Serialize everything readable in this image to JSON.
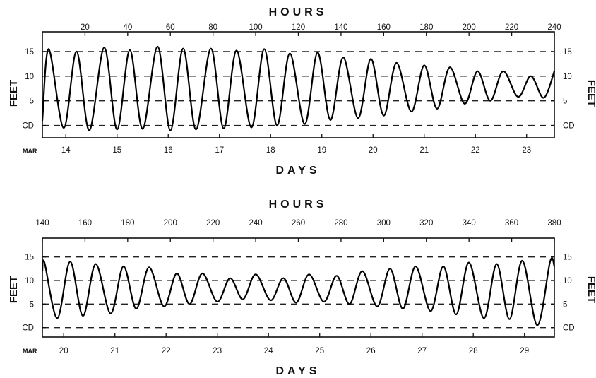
{
  "chart_data": [
    {
      "type": "line",
      "title": "",
      "top_axis_label": "HOURS",
      "xlabel": "DAYS",
      "ylabel_left": "FEET",
      "ylabel_right": "FEET",
      "x_hours_range": [
        0,
        240
      ],
      "hour_ticks": [
        20,
        40,
        60,
        80,
        100,
        120,
        140,
        160,
        180,
        200,
        220,
        240
      ],
      "day_ticks": [
        {
          "label": "14",
          "hour": 11
        },
        {
          "label": "15",
          "hour": 35
        },
        {
          "label": "16",
          "hour": 59
        },
        {
          "label": "17",
          "hour": 83
        },
        {
          "label": "18",
          "hour": 107
        },
        {
          "label": "19",
          "hour": 131
        },
        {
          "label": "20",
          "hour": 155
        },
        {
          "label": "21",
          "hour": 179
        },
        {
          "label": "22",
          "hour": 203
        },
        {
          "label": "23",
          "hour": 227
        }
      ],
      "month_label": "MAR",
      "ylim": [
        -2.5,
        19
      ],
      "left_y_ticks": [
        {
          "label": "15",
          "value": 15
        },
        {
          "label": "10",
          "value": 10
        },
        {
          "label": "5",
          "value": 5
        },
        {
          "label": "CD",
          "value": 0
        }
      ],
      "right_y_ticks": [
        {
          "label": "15",
          "value": 15
        },
        {
          "label": "10",
          "value": 10
        },
        {
          "label": "5",
          "value": 5
        },
        {
          "label": "CD",
          "value": 0
        }
      ],
      "reference_lines": [
        0,
        5,
        10,
        15
      ],
      "series": [
        {
          "x": [
            0,
            3,
            10,
            16,
            22,
            29,
            35,
            41,
            47,
            54,
            60,
            66,
            72,
            79,
            85,
            91,
            98,
            104,
            110,
            116,
            123,
            129,
            135,
            141,
            148,
            154,
            160,
            166,
            173,
            179,
            185,
            191,
            198,
            204,
            210,
            216,
            223,
            229,
            235,
            240
          ],
          "y": [
            1,
            15.5,
            -0.5,
            15,
            -1,
            15.8,
            -0.8,
            15.3,
            -0.7,
            16,
            -1,
            15.6,
            -0.8,
            15.6,
            -0.6,
            15.2,
            -0.4,
            15.5,
            0,
            14.6,
            0.3,
            14.8,
            1.1,
            13.8,
            1.5,
            13.5,
            2,
            12.7,
            2.8,
            12.2,
            3.4,
            11.8,
            4.4,
            11,
            5,
            11,
            5.8,
            10,
            5.6,
            11
          ]
        }
      ]
    },
    {
      "type": "line",
      "title": "",
      "top_axis_label": "HOURS",
      "xlabel": "DAYS",
      "ylabel_left": "FEET",
      "ylabel_right": "FEET",
      "x_hours_range": [
        140,
        380
      ],
      "hour_ticks": [
        140,
        160,
        180,
        200,
        220,
        240,
        260,
        280,
        300,
        320,
        340,
        360,
        380
      ],
      "day_ticks": [
        {
          "label": "20",
          "hour": 150
        },
        {
          "label": "21",
          "hour": 174
        },
        {
          "label": "22",
          "hour": 198
        },
        {
          "label": "23",
          "hour": 222
        },
        {
          "label": "24",
          "hour": 246
        },
        {
          "label": "25",
          "hour": 270
        },
        {
          "label": "26",
          "hour": 294
        },
        {
          "label": "27",
          "hour": 318
        },
        {
          "label": "28",
          "hour": 342
        },
        {
          "label": "29",
          "hour": 366
        }
      ],
      "month_label": "MAR",
      "ylim": [
        -2,
        19
      ],
      "left_y_ticks": [
        {
          "label": "15",
          "value": 15
        },
        {
          "label": "10",
          "value": 10
        },
        {
          "label": "5",
          "value": 5
        },
        {
          "label": "CD",
          "value": 0
        }
      ],
      "right_y_ticks": [
        {
          "label": "15",
          "value": 15
        },
        {
          "label": "10",
          "value": 10
        },
        {
          "label": "5",
          "value": 5
        },
        {
          "label": "CD",
          "value": 0
        }
      ],
      "reference_lines": [
        0,
        5,
        10,
        15
      ],
      "series": [
        {
          "x": [
            140,
            141,
            147,
            153,
            159,
            165,
            172,
            178,
            184,
            190,
            197,
            203,
            209,
            215,
            222,
            228,
            234,
            240,
            247,
            253,
            259,
            265,
            272,
            278,
            284,
            290,
            297,
            303,
            309,
            315,
            322,
            328,
            334,
            340,
            347,
            353,
            359,
            365,
            372,
            378,
            380
          ],
          "y": [
            12,
            13.8,
            2,
            14,
            2.5,
            13.5,
            3,
            13,
            4,
            12.8,
            4.5,
            11.5,
            5,
            11.5,
            5.5,
            10.5,
            6,
            11.3,
            5.8,
            10.5,
            5.3,
            11.3,
            5.5,
            11,
            5,
            12,
            4.5,
            12.5,
            4,
            13,
            3.5,
            13,
            2.8,
            13.8,
            2,
            13.5,
            1.8,
            14.2,
            0.5,
            14,
            13
          ]
        }
      ]
    }
  ]
}
